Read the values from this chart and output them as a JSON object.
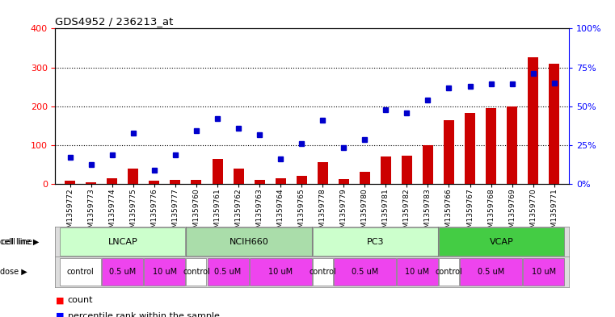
{
  "title": "GDS4952 / 236213_at",
  "samples": [
    "GSM1359772",
    "GSM1359773",
    "GSM1359774",
    "GSM1359775",
    "GSM1359776",
    "GSM1359777",
    "GSM1359760",
    "GSM1359761",
    "GSM1359762",
    "GSM1359763",
    "GSM1359764",
    "GSM1359765",
    "GSM1359778",
    "GSM1359779",
    "GSM1359780",
    "GSM1359781",
    "GSM1359782",
    "GSM1359783",
    "GSM1359766",
    "GSM1359767",
    "GSM1359768",
    "GSM1359769",
    "GSM1359770",
    "GSM1359771"
  ],
  "counts": [
    8,
    5,
    15,
    40,
    8,
    10,
    10,
    65,
    40,
    10,
    15,
    20,
    55,
    12,
    30,
    70,
    72,
    100,
    165,
    182,
    195,
    200,
    325,
    310
  ],
  "percentiles": [
    68,
    50,
    75,
    130,
    35,
    75,
    137,
    168,
    143,
    127,
    65,
    103,
    163,
    93,
    115,
    190,
    183,
    215,
    248,
    252,
    257,
    257,
    285,
    260
  ],
  "cell_groups": [
    {
      "name": "LNCAP",
      "start": 0,
      "end": 5,
      "color": "#ccffcc"
    },
    {
      "name": "NCIH660",
      "start": 6,
      "end": 11,
      "color": "#aaddaa"
    },
    {
      "name": "PC3",
      "start": 12,
      "end": 17,
      "color": "#ccffcc"
    },
    {
      "name": "VCAP",
      "start": 18,
      "end": 23,
      "color": "#44cc44"
    }
  ],
  "dose_groups": [
    {
      "label": "control",
      "start": 0,
      "end": 1,
      "color": "#ffffff"
    },
    {
      "label": "0.5 uM",
      "start": 2,
      "end": 3,
      "color": "#ee44ee"
    },
    {
      "label": "10 uM",
      "start": 4,
      "end": 5,
      "color": "#ee44ee"
    },
    {
      "label": "control",
      "start": 6,
      "end": 6,
      "color": "#ffffff"
    },
    {
      "label": "0.5 uM",
      "start": 7,
      "end": 8,
      "color": "#ee44ee"
    },
    {
      "label": "10 uM",
      "start": 9,
      "end": 11,
      "color": "#ee44ee"
    },
    {
      "label": "control",
      "start": 12,
      "end": 12,
      "color": "#ffffff"
    },
    {
      "label": "0.5 uM",
      "start": 13,
      "end": 15,
      "color": "#ee44ee"
    },
    {
      "label": "10 uM",
      "start": 16,
      "end": 17,
      "color": "#ee44ee"
    },
    {
      "label": "control",
      "start": 18,
      "end": 18,
      "color": "#ffffff"
    },
    {
      "label": "0.5 uM",
      "start": 19,
      "end": 21,
      "color": "#ee44ee"
    },
    {
      "label": "10 uM",
      "start": 22,
      "end": 23,
      "color": "#ee44ee"
    }
  ],
  "bar_color": "#cc0000",
  "dot_color": "#0000cc",
  "ylim_left": [
    0,
    400
  ],
  "ylim_right": [
    0,
    100
  ],
  "yticks_left": [
    0,
    100,
    200,
    300,
    400
  ],
  "yticks_right": [
    0,
    25,
    50,
    75,
    100
  ],
  "yticklabels_right": [
    "0%",
    "25%",
    "50%",
    "75%",
    "100%"
  ],
  "bg_color": "#ffffff",
  "cell_line_separator_indices": [
    5,
    11,
    17
  ]
}
